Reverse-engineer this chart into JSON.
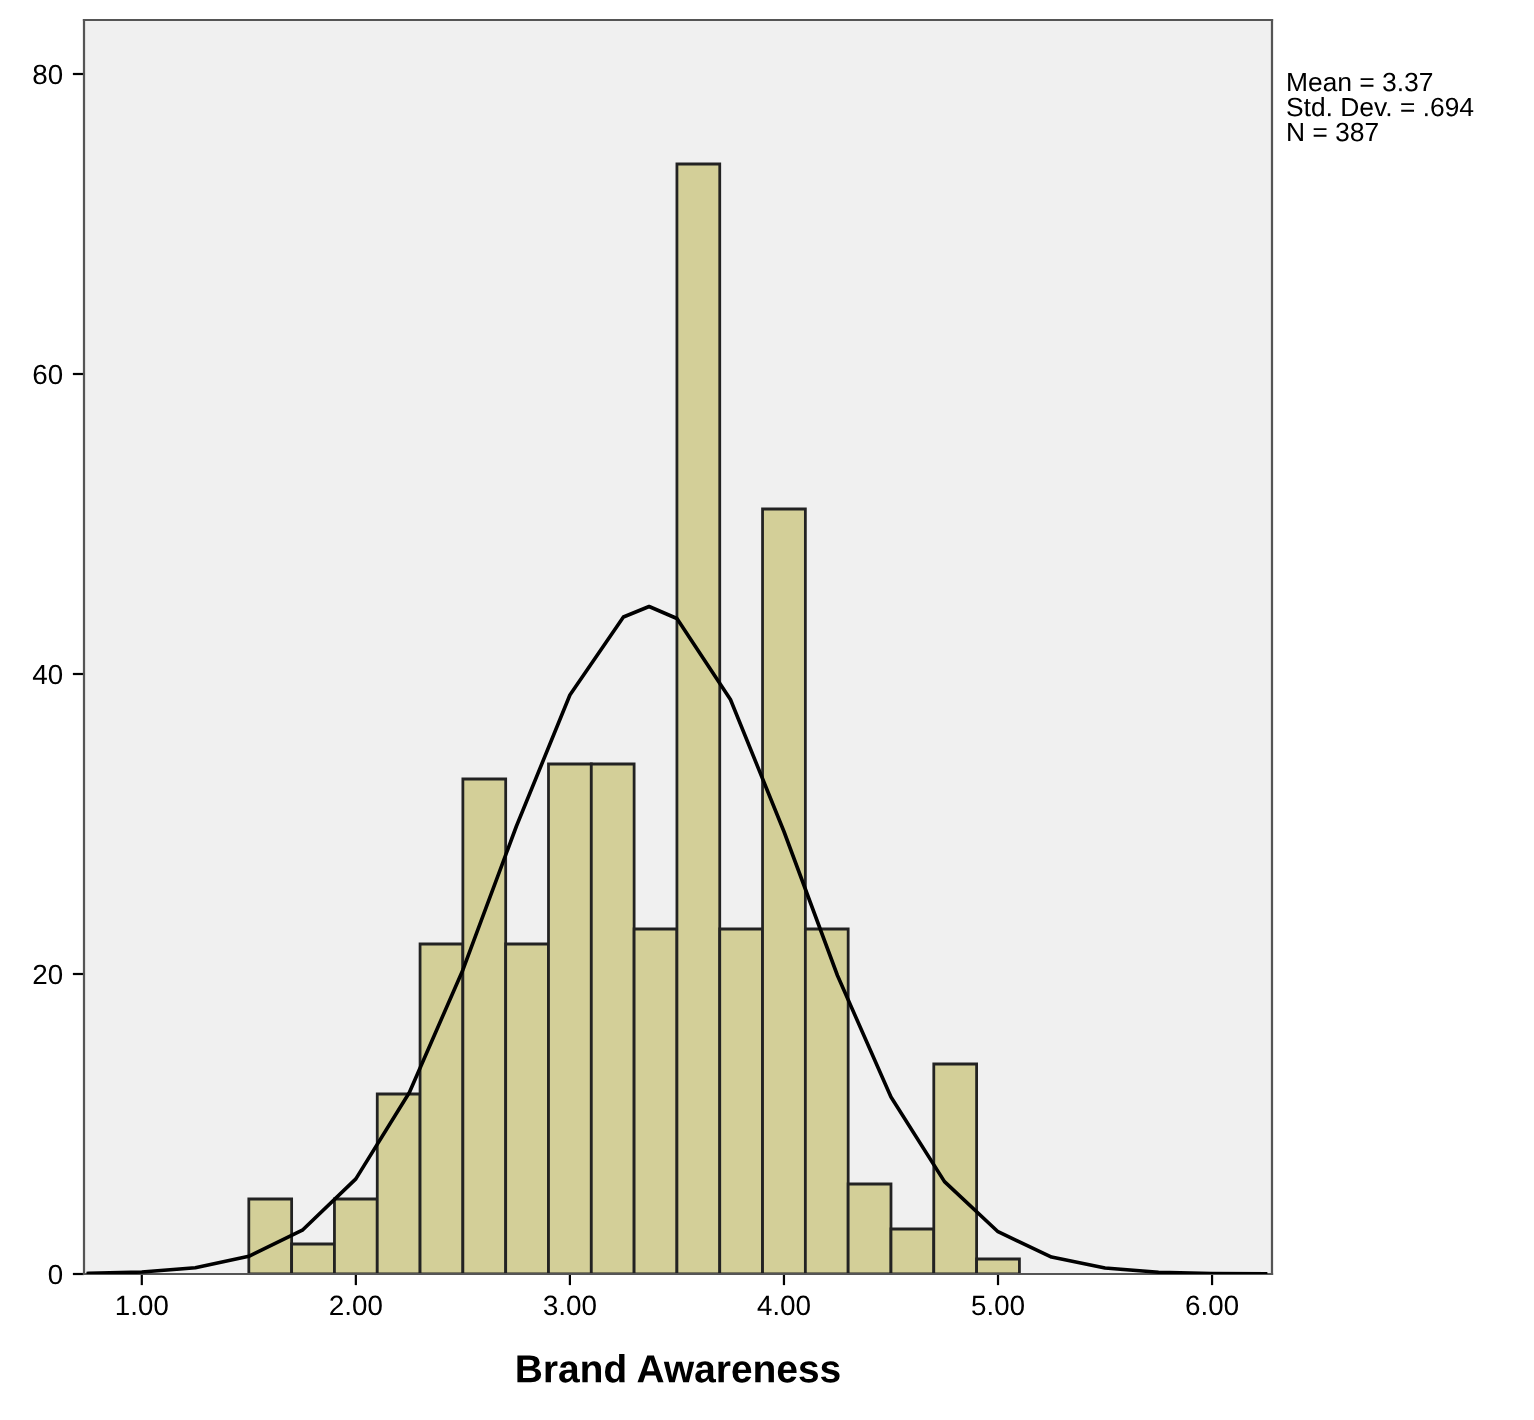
{
  "chart_data": {
    "type": "histogram",
    "xlabel": "Brand Awareness",
    "bins": [
      1.5,
      1.7,
      1.9,
      2.1,
      2.3,
      2.5,
      2.7,
      2.9,
      3.1,
      3.3,
      3.5,
      3.7,
      3.9,
      4.1,
      4.3,
      4.5,
      4.7,
      4.9,
      5.1
    ],
    "values": [
      5,
      2,
      5,
      12,
      22,
      33,
      22,
      34,
      34,
      23,
      74,
      23,
      51,
      23,
      6,
      3,
      14,
      1
    ],
    "color": "#d3cf98",
    "series": [
      {
        "type": "line",
        "color": "#000000",
        "x": [
          0.75,
          1.0,
          1.25,
          1.5,
          1.75,
          2.0,
          2.25,
          2.5,
          2.75,
          3.0,
          3.25,
          3.37,
          3.5,
          3.75,
          4.0,
          4.25,
          4.5,
          4.75,
          5.0,
          5.25,
          5.5,
          5.75,
          6.0,
          6.25
        ],
        "values": [
          0.04,
          0.13,
          0.42,
          1.18,
          2.92,
          6.34,
          12.1,
          20.27,
          29.85,
          38.6,
          43.8,
          44.5,
          43.7,
          38.3,
          29.5,
          19.9,
          11.8,
          6.16,
          2.82,
          1.13,
          0.4,
          0.12,
          0.03,
          0.01
        ]
      }
    ],
    "xlim": [
      0.73,
      6.28
    ],
    "ylim": [
      0,
      83.6
    ],
    "xticks": [
      {
        "value": 1,
        "label": "1.00"
      },
      {
        "value": 2,
        "label": "2.00"
      },
      {
        "value": 3,
        "label": "3.00"
      },
      {
        "value": 4,
        "label": "4.00"
      },
      {
        "value": 5,
        "label": "5.00"
      },
      {
        "value": 6,
        "label": "6.00"
      }
    ],
    "yticks": [
      0,
      20,
      40,
      60,
      80
    ],
    "annotations": [
      "Mean = 3.37",
      "Std. Dev. = .694",
      "N = 387"
    ],
    "grid": false,
    "legend": false
  }
}
